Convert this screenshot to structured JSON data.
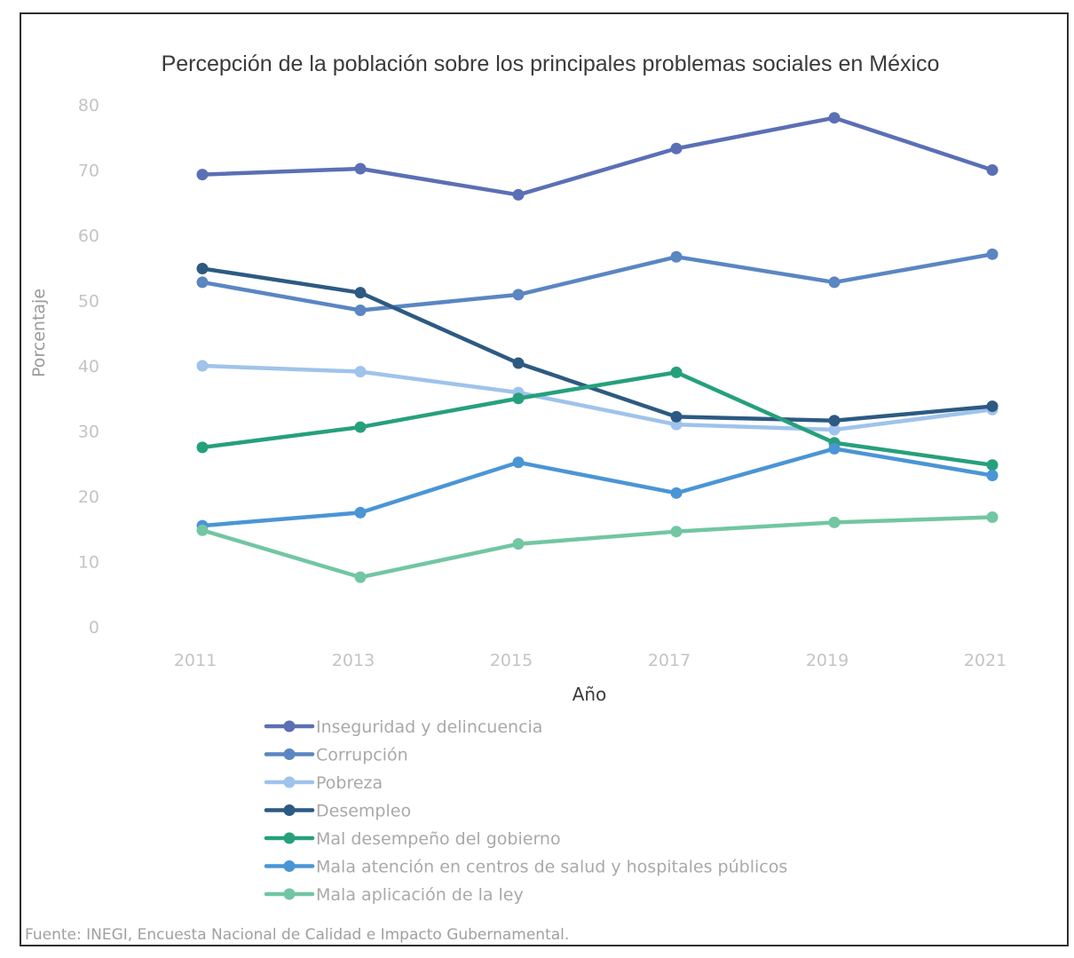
{
  "chart_data": {
    "type": "line",
    "title": "Percepción de la población sobre los principales problemas sociales en México",
    "xlabel": "Año",
    "ylabel": "Porcentaje",
    "x": [
      "2011",
      "2013",
      "2015",
      "2017",
      "2019",
      "2021"
    ],
    "yticks": [
      "0",
      "10",
      "20",
      "30",
      "40",
      "50",
      "60",
      "70",
      "80"
    ],
    "ylim": [
      0,
      80
    ],
    "grid": false,
    "legend_position": "bottom",
    "series": [
      {
        "name": "Inseguridad y delincuencia",
        "color": "#5b6fb5",
        "values": [
          69.3,
          70.2,
          66.2,
          73.3,
          78.0,
          70.0
        ]
      },
      {
        "name": "Corrupción",
        "color": "#5a86c2",
        "values": [
          52.8,
          48.5,
          50.9,
          56.7,
          52.8,
          57.1
        ]
      },
      {
        "name": "Pobreza",
        "color": "#9fc3eb",
        "values": [
          40.0,
          39.1,
          35.9,
          31.0,
          30.2,
          33.3
        ]
      },
      {
        "name": "Desempleo",
        "color": "#2d5a82",
        "values": [
          54.9,
          51.2,
          40.4,
          32.2,
          31.6,
          33.8
        ]
      },
      {
        "name": "Mal desempeño del gobierno",
        "color": "#26a07c",
        "values": [
          27.5,
          30.6,
          35.0,
          39.0,
          28.2,
          24.8
        ]
      },
      {
        "name": "Mala atención en centros de salud y hospitales públicos",
        "color": "#4a95d6",
        "values": [
          15.5,
          17.5,
          25.2,
          20.5,
          27.3,
          23.2
        ]
      },
      {
        "name": "Mala aplicación de la ley",
        "color": "#72c6a2",
        "values": [
          14.8,
          7.6,
          12.7,
          14.6,
          16.0,
          16.8
        ]
      }
    ],
    "source": "Fuente: INEGI, Encuesta Nacional de Calidad e Impacto Gubernamental."
  }
}
